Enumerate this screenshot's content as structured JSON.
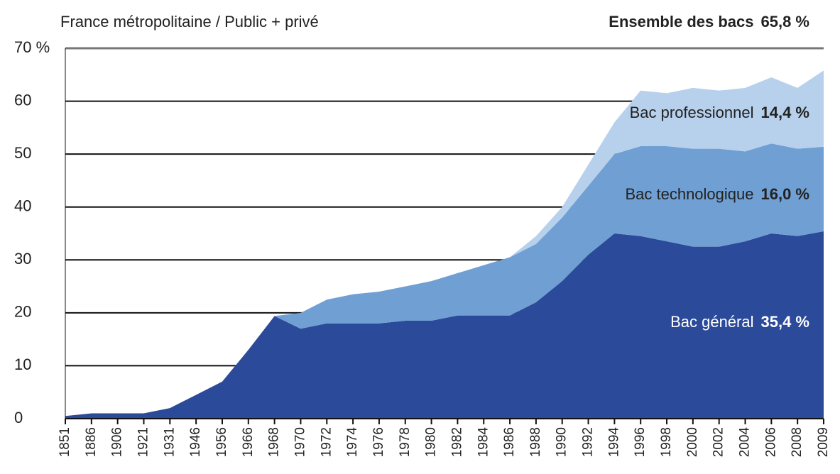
{
  "chart_data": {
    "type": "stacked_area",
    "subtitle": "France métropolitaine / Public + privé",
    "annotations": [
      {
        "text": "Ensemble des bacs",
        "label": "65,8 %"
      }
    ],
    "categories": [
      "1851",
      "1886",
      "1906",
      "1921",
      "1931",
      "1946",
      "1956",
      "1966",
      "1968",
      "1970",
      "1972",
      "1974",
      "1976",
      "1978",
      "1980",
      "1982",
      "1984",
      "1986",
      "1988",
      "1990",
      "1992",
      "1994",
      "1996",
      "1998",
      "2000",
      "2002",
      "2004",
      "2006",
      "2008",
      "2009"
    ],
    "series": [
      {
        "name": "Bac général",
        "color": "#2c4a9a",
        "values": [
          0.5,
          1,
          1,
          1,
          2,
          4.5,
          7,
          13,
          19.4,
          17,
          18,
          18,
          18,
          18.5,
          18.5,
          19.5,
          19.5,
          19.5,
          22,
          26,
          31,
          35,
          34.5,
          33.5,
          32.5,
          32.5,
          33.5,
          35,
          34.5,
          35.4
        ],
        "value_labels": [
          null,
          null,
          null,
          null,
          null,
          null,
          null,
          null,
          null,
          null,
          null,
          null,
          null,
          null,
          null,
          null,
          null,
          null,
          null,
          null,
          null,
          null,
          null,
          null,
          null,
          null,
          null,
          null,
          null,
          "35,4 %"
        ]
      },
      {
        "name": "Bac technologique",
        "color": "#6f9fd3",
        "values": [
          0,
          0,
          0,
          0,
          0,
          0,
          0,
          0,
          0,
          3,
          4.5,
          5.5,
          6,
          6.5,
          7.5,
          8,
          9.5,
          11,
          11,
          12,
          13,
          15,
          17,
          18,
          18.5,
          18.5,
          17,
          17,
          16.5,
          16
        ],
        "value_labels": [
          null,
          null,
          null,
          null,
          null,
          null,
          null,
          null,
          null,
          null,
          null,
          null,
          null,
          null,
          null,
          null,
          null,
          null,
          null,
          null,
          null,
          null,
          null,
          null,
          null,
          null,
          null,
          null,
          null,
          "16,0 %"
        ]
      },
      {
        "name": "Bac professionnel",
        "color": "#b7d0ec",
        "values": [
          0,
          0,
          0,
          0,
          0,
          0,
          0,
          0,
          0,
          0,
          0,
          0,
          0,
          0,
          0,
          0,
          0,
          0,
          1.5,
          2,
          4,
          6,
          10.5,
          10,
          11.5,
          11,
          12,
          12.5,
          11.5,
          14.4
        ],
        "value_labels": [
          null,
          null,
          null,
          null,
          null,
          null,
          null,
          null,
          null,
          null,
          null,
          null,
          null,
          null,
          null,
          null,
          null,
          null,
          null,
          null,
          null,
          null,
          null,
          null,
          null,
          null,
          null,
          null,
          null,
          "14,4 %"
        ]
      }
    ],
    "ylim": [
      0,
      70
    ],
    "yticks": [
      0,
      10,
      20,
      30,
      40,
      50,
      60,
      {
        "value": 70,
        "label": "70 %"
      }
    ],
    "grid": true
  }
}
